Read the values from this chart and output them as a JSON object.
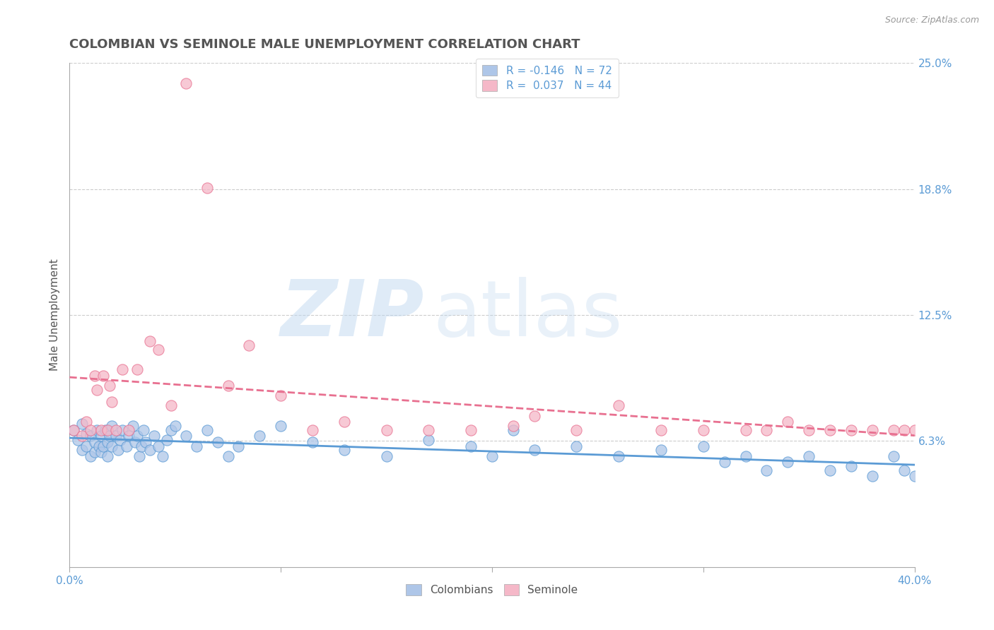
{
  "title": "COLOMBIAN VS SEMINOLE MALE UNEMPLOYMENT CORRELATION CHART",
  "source": "Source: ZipAtlas.com",
  "ylabel": "Male Unemployment",
  "xlim": [
    0.0,
    0.4
  ],
  "ylim": [
    0.0,
    0.25
  ],
  "yticks": [
    0.0,
    0.0625,
    0.125,
    0.1875,
    0.25
  ],
  "ytick_labels": [
    "",
    "6.3%",
    "12.5%",
    "18.8%",
    "25.0%"
  ],
  "xticks": [
    0.0,
    0.1,
    0.2,
    0.3,
    0.4
  ],
  "xtick_labels": [
    "0.0%",
    "",
    "",
    "",
    "40.0%"
  ],
  "colombians_R": -0.146,
  "colombians_N": 72,
  "seminole_R": 0.037,
  "seminole_N": 44,
  "colombian_color": "#aec6e8",
  "seminole_color": "#f5b8c8",
  "colombian_line_color": "#5b9bd5",
  "seminole_line_color": "#e87090",
  "background_color": "#ffffff",
  "grid_color": "#cccccc",
  "watermark_color": "#ddeeff",
  "title_color": "#555555",
  "axis_label_color": "#555555",
  "tick_label_color": "#5b9bd5",
  "colombians_x": [
    0.002,
    0.004,
    0.006,
    0.006,
    0.008,
    0.008,
    0.01,
    0.01,
    0.012,
    0.012,
    0.013,
    0.014,
    0.015,
    0.015,
    0.016,
    0.017,
    0.018,
    0.018,
    0.019,
    0.02,
    0.02,
    0.022,
    0.023,
    0.024,
    0.025,
    0.027,
    0.028,
    0.03,
    0.031,
    0.032,
    0.033,
    0.034,
    0.035,
    0.036,
    0.038,
    0.04,
    0.042,
    0.044,
    0.046,
    0.048,
    0.05,
    0.055,
    0.06,
    0.065,
    0.07,
    0.075,
    0.08,
    0.09,
    0.1,
    0.115,
    0.13,
    0.15,
    0.17,
    0.19,
    0.2,
    0.21,
    0.22,
    0.24,
    0.26,
    0.28,
    0.3,
    0.31,
    0.32,
    0.33,
    0.34,
    0.35,
    0.36,
    0.37,
    0.38,
    0.39,
    0.395,
    0.4
  ],
  "colombians_y": [
    0.068,
    0.063,
    0.071,
    0.058,
    0.066,
    0.06,
    0.065,
    0.055,
    0.062,
    0.057,
    0.068,
    0.06,
    0.065,
    0.057,
    0.06,
    0.068,
    0.062,
    0.055,
    0.065,
    0.07,
    0.06,
    0.065,
    0.058,
    0.063,
    0.068,
    0.06,
    0.065,
    0.07,
    0.062,
    0.065,
    0.055,
    0.06,
    0.068,
    0.062,
    0.058,
    0.065,
    0.06,
    0.055,
    0.063,
    0.068,
    0.07,
    0.065,
    0.06,
    0.068,
    0.062,
    0.055,
    0.06,
    0.065,
    0.07,
    0.062,
    0.058,
    0.055,
    0.063,
    0.06,
    0.055,
    0.068,
    0.058,
    0.06,
    0.055,
    0.058,
    0.06,
    0.052,
    0.055,
    0.048,
    0.052,
    0.055,
    0.048,
    0.05,
    0.045,
    0.055,
    0.048,
    0.045
  ],
  "seminole_x": [
    0.002,
    0.006,
    0.008,
    0.01,
    0.012,
    0.013,
    0.015,
    0.016,
    0.018,
    0.019,
    0.02,
    0.022,
    0.025,
    0.028,
    0.032,
    0.038,
    0.042,
    0.048,
    0.055,
    0.065,
    0.075,
    0.085,
    0.1,
    0.115,
    0.13,
    0.15,
    0.17,
    0.19,
    0.21,
    0.22,
    0.24,
    0.26,
    0.28,
    0.3,
    0.32,
    0.33,
    0.34,
    0.35,
    0.36,
    0.37,
    0.38,
    0.39,
    0.395,
    0.4
  ],
  "seminole_y": [
    0.068,
    0.065,
    0.072,
    0.068,
    0.095,
    0.088,
    0.068,
    0.095,
    0.068,
    0.09,
    0.082,
    0.068,
    0.098,
    0.068,
    0.098,
    0.112,
    0.108,
    0.08,
    0.24,
    0.188,
    0.09,
    0.11,
    0.085,
    0.068,
    0.072,
    0.068,
    0.068,
    0.068,
    0.07,
    0.075,
    0.068,
    0.08,
    0.068,
    0.068,
    0.068,
    0.068,
    0.072,
    0.068,
    0.068,
    0.068,
    0.068,
    0.068,
    0.068,
    0.068
  ]
}
